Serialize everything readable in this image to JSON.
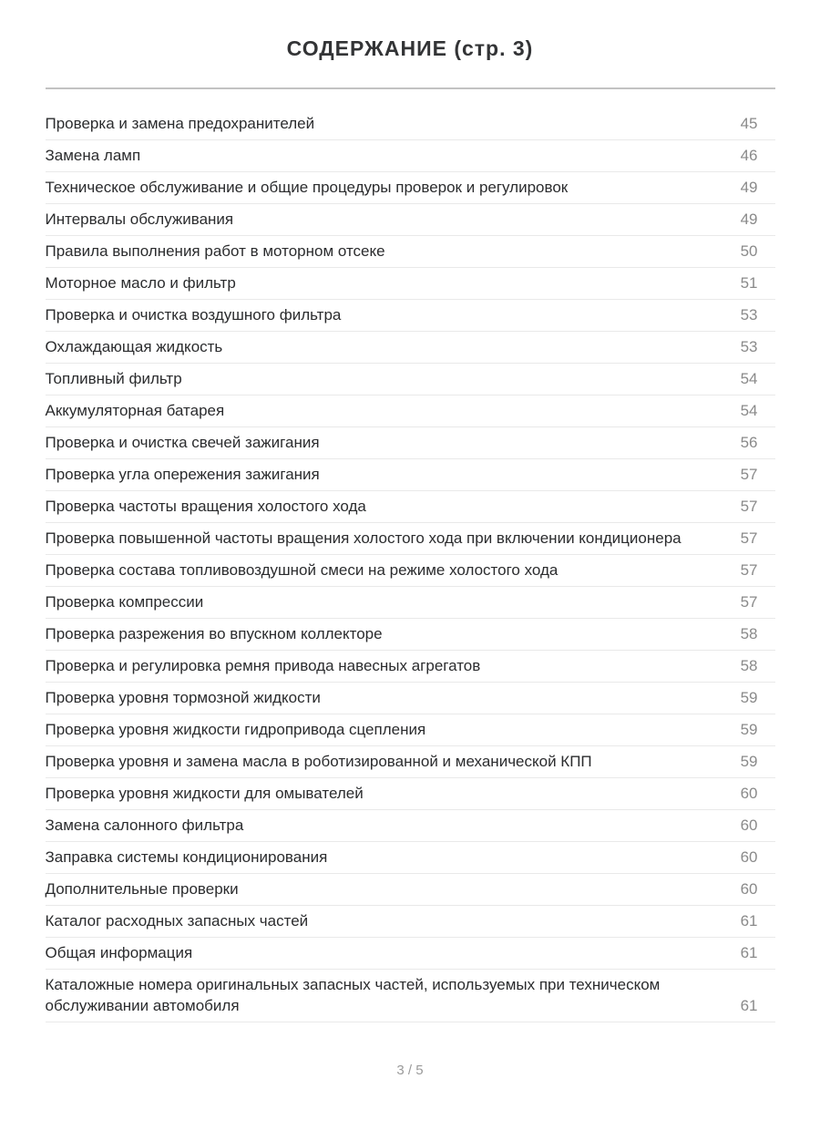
{
  "page": {
    "title": "СОДЕРЖАНИЕ (стр. 3)",
    "footer": "3 / 5"
  },
  "toc": {
    "entries": [
      {
        "label": "Проверка и замена предохранителей",
        "page": "45"
      },
      {
        "label": "Замена ламп",
        "page": "46"
      },
      {
        "label": "Техническое обслуживание и общие процедуры проверок и регулировок",
        "page": "49"
      },
      {
        "label": "Интервалы обслуживания",
        "page": "49"
      },
      {
        "label": "Правила выполнения работ в моторном отсеке",
        "page": "50"
      },
      {
        "label": "Моторное масло и фильтр",
        "page": "51"
      },
      {
        "label": "Проверка и очистка воздушного фильтра",
        "page": "53"
      },
      {
        "label": "Охлаждающая жидкость",
        "page": "53"
      },
      {
        "label": "Топливный фильтр",
        "page": "54"
      },
      {
        "label": "Аккумуляторная батарея",
        "page": "54"
      },
      {
        "label": "Проверка и очистка свечей зажигания",
        "page": "56"
      },
      {
        "label": "Проверка угла опережения зажигания",
        "page": "57"
      },
      {
        "label": "Проверка частоты вращения холостого хода",
        "page": "57"
      },
      {
        "label": "Проверка повышенной частоты вращения холостого хода при включении кондиционера",
        "page": "57"
      },
      {
        "label": "Проверка состава топливовоздушной смеси на режиме холостого хода",
        "page": "57"
      },
      {
        "label": "Проверка компрессии",
        "page": "57"
      },
      {
        "label": "Проверка разрежения во впускном коллекторе",
        "page": "58"
      },
      {
        "label": "Проверка и регулировка ремня привода навесных агрегатов",
        "page": "58"
      },
      {
        "label": "Проверка уровня тормозной жидкости",
        "page": "59"
      },
      {
        "label": "Проверка уровня жидкости гидропривода сцепления",
        "page": "59"
      },
      {
        "label": "Проверка уровня и замена масла в роботизированной и механической КПП",
        "page": "59"
      },
      {
        "label": "Проверка уровня жидкости для омывателей",
        "page": "60"
      },
      {
        "label": "Замена салонного фильтра",
        "page": "60"
      },
      {
        "label": "Заправка системы кондиционирования",
        "page": "60"
      },
      {
        "label": "Дополнительные проверки",
        "page": "60"
      },
      {
        "label": "Каталог расходных запасных частей",
        "page": "61"
      },
      {
        "label": "Общая информация",
        "page": "61"
      },
      {
        "label": "Каталожные номера оригинальных запасных частей, используемых при техническом обслуживании автомобиля",
        "page": "61"
      }
    ]
  }
}
